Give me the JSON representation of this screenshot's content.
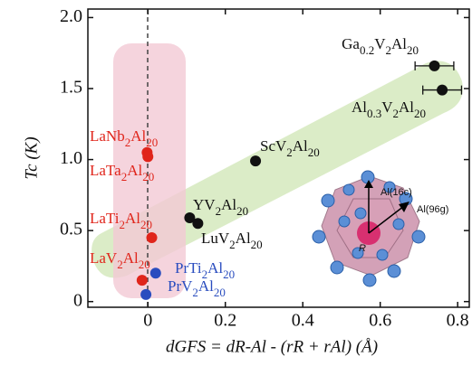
{
  "chart_data": {
    "type": "scatter",
    "xlabel": "dGFS = dR-Al - (rR + rAl) (Å)",
    "ylabel": "Tc (K)",
    "xlim": [
      -0.155,
      0.83
    ],
    "xticks": [
      0,
      0.2,
      0.4,
      0.6,
      0.8
    ],
    "ylim": [
      -0.04,
      2.06
    ],
    "yticks": [
      0,
      0.5,
      {
        "value": 1,
        "label": "1.0"
      },
      1.5,
      {
        "value": 2,
        "label": "2.0"
      }
    ],
    "series": [
      {
        "color": "#111111",
        "labels": [
          "Ga0.2V2Al20",
          "Al0.3V2Al20",
          "ScV2Al20",
          "YV2Al20",
          "LuV2Al20"
        ],
        "x": [
          0.74,
          0.76,
          0.278,
          0.108,
          0.129
        ],
        "y": [
          1.66,
          1.49,
          0.99,
          0.59,
          0.55
        ],
        "xerr": [
          0.05,
          0.05,
          null,
          null,
          null
        ]
      },
      {
        "color": "#e0251b",
        "labels": [
          "LaNb2Al20",
          "LaTa2Al20",
          "LaTi2Al20",
          "LaV2Al20"
        ],
        "x": [
          -0.002,
          0.0,
          0.01,
          -0.015
        ],
        "y": [
          1.05,
          1.02,
          0.45,
          0.15
        ]
      },
      {
        "color": "#2a4dbf",
        "labels": [
          "PrTi2Al20",
          "PrV2Al20"
        ],
        "x": [
          0.02,
          -0.005
        ],
        "y": [
          0.2,
          0.05
        ]
      }
    ],
    "annotations": [
      "Al(16c)",
      "Al(96g)",
      "R"
    ]
  }
}
